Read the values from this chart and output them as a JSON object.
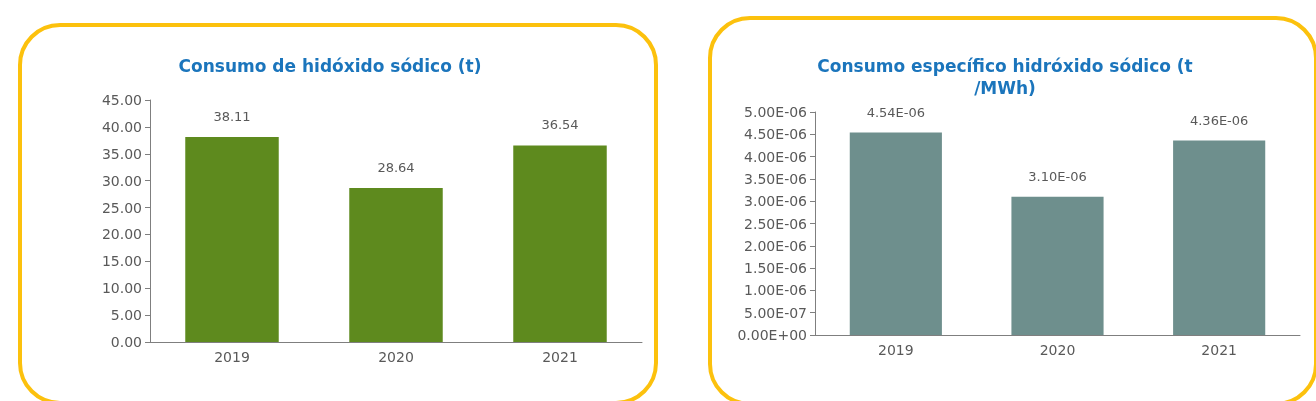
{
  "chart_data": [
    {
      "type": "bar",
      "title": "Consumo de hidóxido sódico (t)",
      "categories": [
        "2019",
        "2020",
        "2021"
      ],
      "values": [
        38.11,
        28.64,
        36.54
      ],
      "value_labels": [
        "38.11",
        "28.64",
        "36.54"
      ],
      "color": "#5e8a1e",
      "ylim": [
        0,
        45
      ],
      "yticks": [
        {
          "value": 0,
          "label": "0.00"
        },
        {
          "value": 5,
          "label": "5.00"
        },
        {
          "value": 10,
          "label": "10.00"
        },
        {
          "value": 15,
          "label": "15.00"
        },
        {
          "value": 20,
          "label": "20.00"
        },
        {
          "value": 25,
          "label": "25.00"
        },
        {
          "value": 30,
          "label": "30.00"
        },
        {
          "value": 35,
          "label": "35.00"
        },
        {
          "value": 40,
          "label": "40.00"
        },
        {
          "value": 45,
          "label": "45.00"
        }
      ],
      "grid": false
    },
    {
      "type": "bar",
      "title": "Consumo específico hidróxido sódico (t/MWh)",
      "categories": [
        "2019",
        "2020",
        "2021"
      ],
      "values": [
        4.54e-06,
        3.1e-06,
        4.36e-06
      ],
      "value_labels": [
        "4.54E-06",
        "3.10E-06",
        "4.36E-06"
      ],
      "color": "#6e8f8d",
      "ylim": [
        0,
        5e-06
      ],
      "yticks": [
        {
          "value": 0,
          "label": "0.00E+00"
        },
        {
          "value": 5e-07,
          "label": "5.00E-07"
        },
        {
          "value": 1e-06,
          "label": "1.00E-06"
        },
        {
          "value": 1.5e-06,
          "label": "1.50E-06"
        },
        {
          "value": 2e-06,
          "label": "2.00E-06"
        },
        {
          "value": 2.5e-06,
          "label": "2.50E-06"
        },
        {
          "value": 3e-06,
          "label": "3.00E-06"
        },
        {
          "value": 3.5e-06,
          "label": "3.50E-06"
        },
        {
          "value": 4e-06,
          "label": "4.00E-06"
        },
        {
          "value": 4.5e-06,
          "label": "4.50E-06"
        },
        {
          "value": 5e-06,
          "label": "5.00E-06"
        }
      ],
      "grid": false
    }
  ]
}
